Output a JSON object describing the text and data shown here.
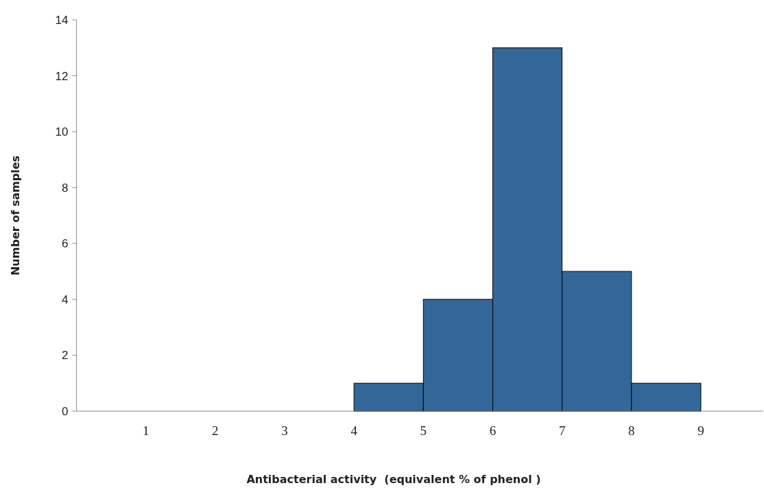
{
  "chart_data": {
    "type": "histogram",
    "xlabel": "Antibacterial activity  (equivalent % of phenol )",
    "ylabel": "Number of samples",
    "bins": [
      4,
      5,
      6,
      7,
      8,
      9
    ],
    "values": [
      1,
      4,
      13,
      5,
      1
    ],
    "color": "#336699",
    "xlim": [
      0,
      9.9
    ],
    "xticks": [
      1,
      2,
      3,
      4,
      5,
      6,
      7,
      8,
      9
    ],
    "ylim": [
      0,
      14
    ],
    "yticks": [
      0,
      2,
      4,
      6,
      8,
      10,
      12,
      14
    ],
    "grid": false
  }
}
